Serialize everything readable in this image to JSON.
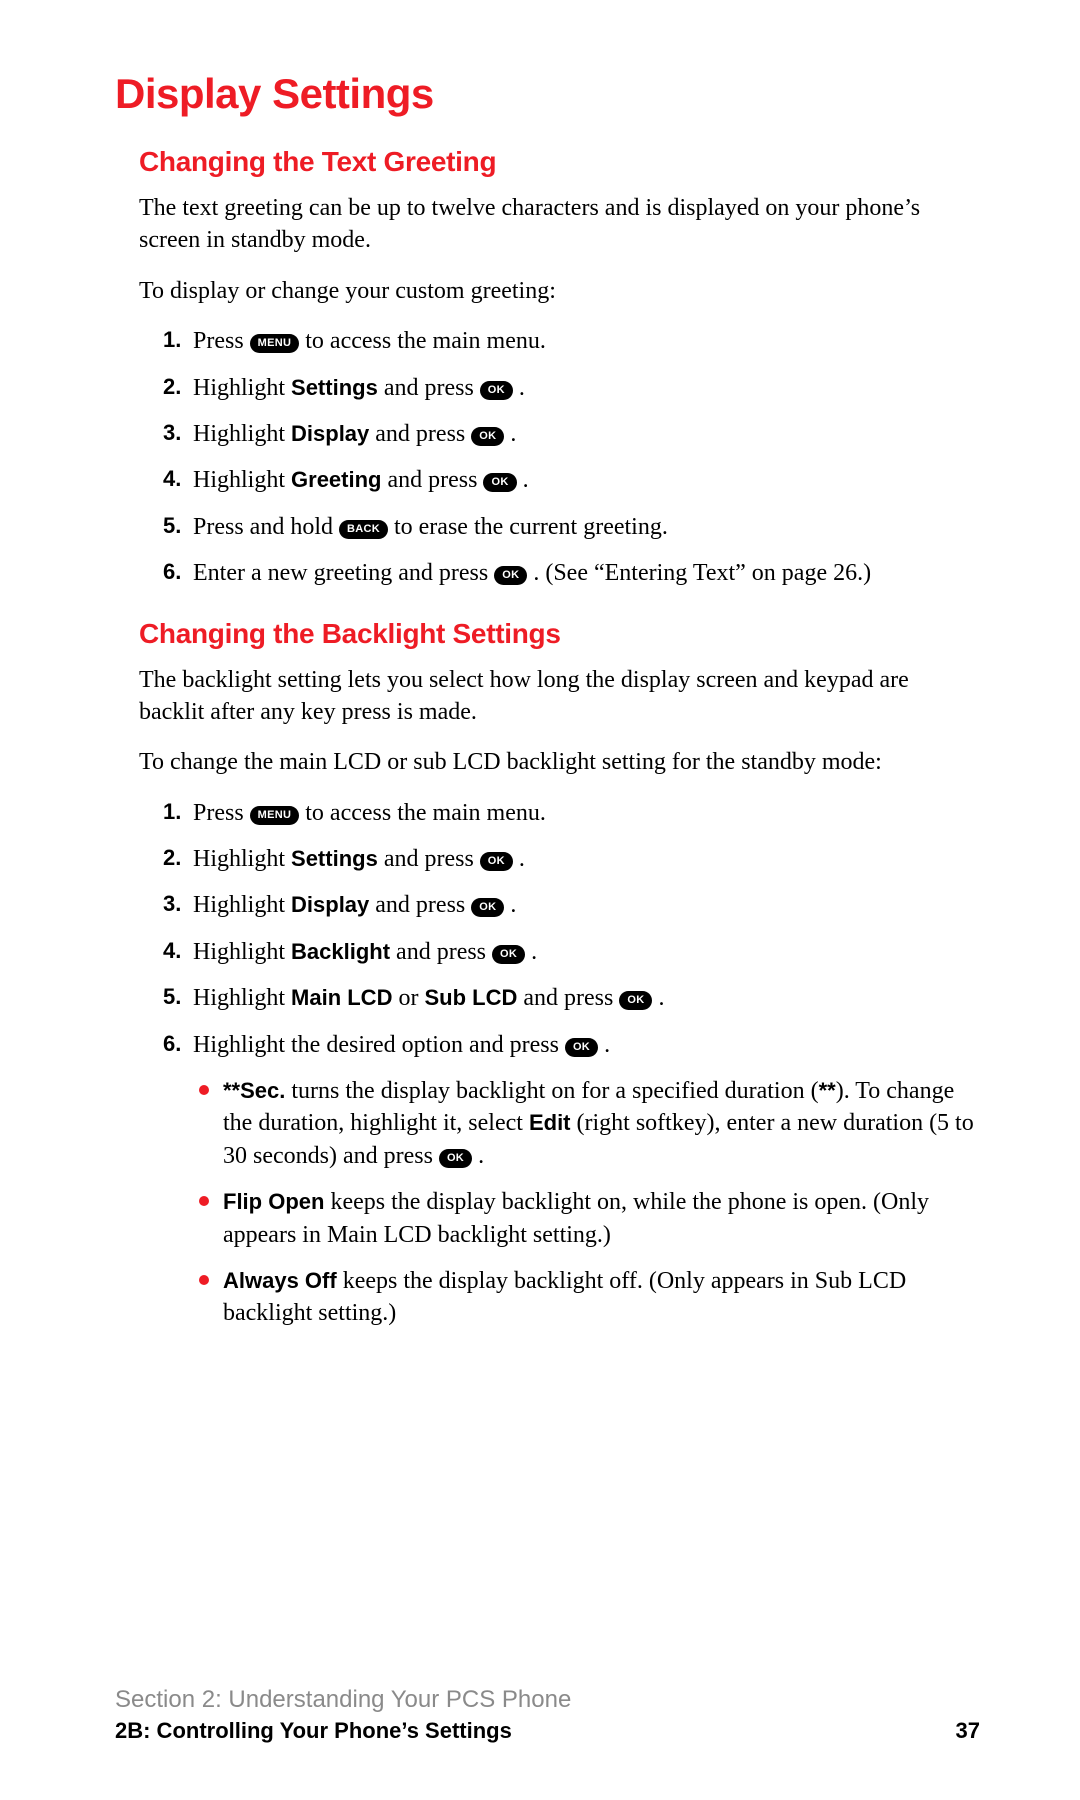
{
  "colors": {
    "accent": "#ee1c25",
    "text": "#000000",
    "footer_muted": "#8a8a8a",
    "background": "#ffffff",
    "keycap_bg": "#000000",
    "keycap_fg": "#ffffff"
  },
  "typography": {
    "h1_fontsize": 42,
    "h2_fontsize": 28,
    "body_fontsize": 24,
    "bold_inline_fontsize": 22,
    "keycap_fontsize": 11,
    "footer1_fontsize": 24,
    "footer2_fontsize": 22,
    "body_family": "Georgia serif",
    "heading_family": "Arial Narrow condensed bold",
    "bold_family": "Arial bold"
  },
  "keycaps": {
    "menu": "MENU",
    "ok": "OK",
    "back": "BACK"
  },
  "h1": "Display Settings",
  "sec1": {
    "heading": "Changing the Text Greeting",
    "p1": "The text greeting can be up to twelve characters and is displayed on your phone’s screen in standby mode.",
    "p2": "To display or change your custom greeting:",
    "steps": [
      {
        "n": "1.",
        "pre": "Press ",
        "key": "menu",
        "post": " to access the main menu."
      },
      {
        "n": "2.",
        "pre": "Highlight ",
        "bold": "Settings",
        "mid": " and press ",
        "key": "ok",
        "post": " ."
      },
      {
        "n": "3.",
        "pre": "Highlight ",
        "bold": "Display",
        "mid": " and press ",
        "key": "ok",
        "post": " ."
      },
      {
        "n": "4.",
        "pre": "Highlight ",
        "bold": "Greeting",
        "mid": " and press ",
        "key": "ok",
        "post": " ."
      },
      {
        "n": "5.",
        "pre": "Press and hold ",
        "key": "back",
        "post": " to erase the current greeting."
      },
      {
        "n": "6.",
        "pre": "Enter a new greeting and press ",
        "key": "ok",
        "post": " . (See “Entering Text” on page 26.)"
      }
    ]
  },
  "sec2": {
    "heading": "Changing the Backlight Settings",
    "p1": "The backlight setting lets you select how long the display screen and keypad are backlit after any key press is made.",
    "p2": "To change the main LCD or sub LCD backlight setting for the standby mode:",
    "steps": [
      {
        "n": "1.",
        "pre": "Press ",
        "key": "menu",
        "post": " to access the main menu."
      },
      {
        "n": "2.",
        "pre": "Highlight ",
        "bold": "Settings",
        "mid": " and press ",
        "key": "ok",
        "post": " ."
      },
      {
        "n": "3.",
        "pre": "Highlight ",
        "bold": "Display",
        "mid": " and press ",
        "key": "ok",
        "post": " ."
      },
      {
        "n": "4.",
        "pre": "Highlight ",
        "bold": "Backlight",
        "mid": " and press ",
        "key": "ok",
        "post": " ."
      },
      {
        "n": "5.",
        "pre": "Highlight ",
        "bold": "Main LCD",
        "mid2": " or ",
        "bold2": "Sub LCD",
        "mid": " and press ",
        "key": "ok",
        "post": " ."
      },
      {
        "n": "6.",
        "pre": "Highlight the desired option and press ",
        "key": "ok",
        "post": " ."
      }
    ],
    "bullets": [
      {
        "bold": "**Sec.",
        "t1": " turns the display backlight on for a specified duration (",
        "bold2": "**",
        "t2": "). To change the duration, highlight it, select ",
        "bold3": "Edit",
        "t3": " (right softkey), enter a new duration (5 to 30 seconds) and press ",
        "key": "ok",
        "t4": " ."
      },
      {
        "bold": "Flip Open",
        "t1": " keeps the display backlight on, while the phone is open. (Only appears in Main LCD backlight setting.)"
      },
      {
        "bold": "Always Off",
        "t1": " keeps the display backlight off. (Only appears in Sub LCD backlight setting.)"
      }
    ]
  },
  "footer": {
    "line1": "Section 2: Understanding Your PCS Phone",
    "line2": "2B: Controlling Your Phone’s Settings",
    "page": "37"
  }
}
